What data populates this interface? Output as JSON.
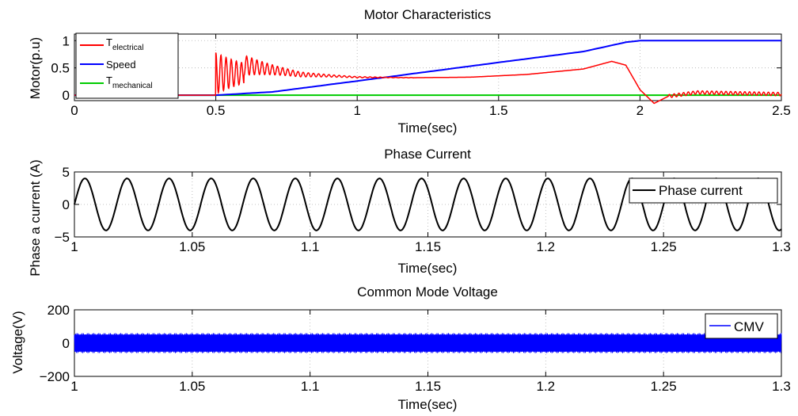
{
  "chart_data": [
    {
      "type": "line",
      "title": "Motor Characteristics",
      "xlabel": "Time(sec)",
      "ylabel": "Motor(p.u)",
      "xlim": [
        0,
        2.5
      ],
      "ylim": [
        -0.1,
        1.12
      ],
      "xticks": [
        0,
        0.5,
        1,
        1.5,
        2,
        2.5
      ],
      "xtick_labels": [
        "0",
        "0.5",
        "1",
        "1.5",
        "2",
        "2.5"
      ],
      "yticks": [
        0,
        0.5,
        1
      ],
      "ytick_labels": [
        "0",
        "0.5",
        "1"
      ],
      "grid": true,
      "legend_position": "top-left",
      "series": [
        {
          "name": "T",
          "subscript": "electrical",
          "color": "#ff0000",
          "description": "zero until 0.5 s, decaying oscillation from 0.8 to ~0.32, slow rise to 0.62 at 1.9 s, drop to -0.15 at 2.05 s, settling near 0",
          "x": [
            0,
            0.5,
            0.6,
            0.8,
            1.0,
            1.2,
            1.4,
            1.6,
            1.8,
            1.9,
            1.95,
            2.0,
            2.05,
            2.1,
            2.2,
            2.5
          ],
          "values": [
            0,
            0.8,
            0.55,
            0.38,
            0.33,
            0.32,
            0.33,
            0.38,
            0.48,
            0.62,
            0.55,
            0.1,
            -0.15,
            -0.02,
            0.05,
            0.02
          ]
        },
        {
          "name": "Speed",
          "color": "#0000ff",
          "x": [
            0,
            0.5,
            0.7,
            1.0,
            1.5,
            1.8,
            1.95,
            2.0,
            2.5
          ],
          "values": [
            0,
            0,
            0.06,
            0.26,
            0.6,
            0.8,
            0.97,
            1.0,
            1.0
          ]
        },
        {
          "name": "T",
          "subscript": "mechanical",
          "color": "#00cc00",
          "x": [
            0,
            2.5
          ],
          "values": [
            0,
            0
          ]
        }
      ]
    },
    {
      "type": "line",
      "title": "Phase Current",
      "xlabel": "Time(sec)",
      "ylabel": "Phase a current (A)",
      "xlim": [
        1,
        1.3
      ],
      "ylim": [
        -5,
        5
      ],
      "xticks": [
        1,
        1.05,
        1.1,
        1.15,
        1.2,
        1.25,
        1.3
      ],
      "xtick_labels": [
        "1",
        "1.05",
        "1.1",
        "1.15",
        "1.2",
        "1.25",
        "1.3"
      ],
      "yticks": [
        -5,
        0,
        5
      ],
      "ytick_labels": [
        "−5",
        "0",
        "5"
      ],
      "grid": true,
      "legend_position": "top-right",
      "series": [
        {
          "name": "Phase current",
          "color": "#000000",
          "amplitude": 4,
          "frequency_hz": 56,
          "phase_at_1s": 0
        }
      ]
    },
    {
      "type": "line",
      "title": "Common Mode Voltage",
      "xlabel": "Time(sec)",
      "ylabel": "Voltage(V)",
      "xlim": [
        1,
        1.3
      ],
      "ylim": [
        -200,
        200
      ],
      "xticks": [
        1,
        1.05,
        1.1,
        1.15,
        1.2,
        1.25,
        1.3
      ],
      "xtick_labels": [
        "1",
        "1.05",
        "1.1",
        "1.15",
        "1.2",
        "1.25",
        "1.3"
      ],
      "yticks": [
        -200,
        0,
        200
      ],
      "ytick_labels": [
        "−200",
        "0",
        "200"
      ],
      "grid": true,
      "legend_position": "top-right",
      "series": [
        {
          "name": "CMV",
          "color": "#0000ff",
          "band_min": -60,
          "band_max": 60
        }
      ]
    }
  ]
}
